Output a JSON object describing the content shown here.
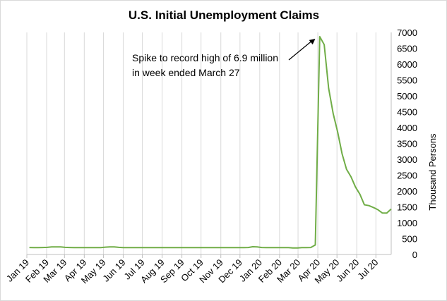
{
  "chart_data": {
    "type": "line",
    "title": "U.S. Initial Unemployment Claims",
    "xlabel": "",
    "ylabel": "Thousand Persons",
    "ylim": [
      0,
      7000
    ],
    "yticks": [
      0,
      500,
      1000,
      1500,
      2000,
      2500,
      3000,
      3500,
      4000,
      4500,
      5000,
      5500,
      6000,
      6500,
      7000
    ],
    "y_axis_side": "right",
    "grid": "vertical",
    "legend": "none",
    "x_tick_labels": [
      "Jan 19",
      "Feb 19",
      "Mar 19",
      "Apr 19",
      "May 19",
      "Jun 19",
      "Jul 19",
      "Aug 19",
      "Sep 19",
      "Oct 19",
      "Nov 19",
      "Dec 19",
      "Jan 20",
      "Feb 20",
      "Mar 20",
      "Apr 20",
      "May 20",
      "Jun 20",
      "Jul 20"
    ],
    "x": [
      "2019-01-05",
      "2019-01-12",
      "2019-01-19",
      "2019-01-26",
      "2019-02-02",
      "2019-02-09",
      "2019-02-16",
      "2019-02-23",
      "2019-03-02",
      "2019-03-09",
      "2019-03-16",
      "2019-03-23",
      "2019-03-30",
      "2019-04-06",
      "2019-04-13",
      "2019-04-20",
      "2019-04-27",
      "2019-05-04",
      "2019-05-11",
      "2019-05-18",
      "2019-05-25",
      "2019-06-01",
      "2019-06-08",
      "2019-06-15",
      "2019-06-22",
      "2019-06-29",
      "2019-07-06",
      "2019-07-13",
      "2019-07-20",
      "2019-07-27",
      "2019-08-03",
      "2019-08-10",
      "2019-08-17",
      "2019-08-24",
      "2019-08-31",
      "2019-09-07",
      "2019-09-14",
      "2019-09-21",
      "2019-09-28",
      "2019-10-05",
      "2019-10-12",
      "2019-10-19",
      "2019-10-26",
      "2019-11-02",
      "2019-11-09",
      "2019-11-16",
      "2019-11-23",
      "2019-11-30",
      "2019-12-07",
      "2019-12-14",
      "2019-12-21",
      "2019-12-28",
      "2020-01-04",
      "2020-01-11",
      "2020-01-18",
      "2020-01-25",
      "2020-02-01",
      "2020-02-08",
      "2020-02-15",
      "2020-02-22",
      "2020-02-29",
      "2020-03-07",
      "2020-03-14",
      "2020-03-21",
      "2020-03-28",
      "2020-04-04",
      "2020-04-11",
      "2020-04-18",
      "2020-04-25",
      "2020-05-02",
      "2020-05-09",
      "2020-05-16",
      "2020-05-23",
      "2020-05-30",
      "2020-06-06",
      "2020-06-13",
      "2020-06-20",
      "2020-06-27",
      "2020-07-04",
      "2020-07-11",
      "2020-07-18",
      "2020-07-25"
    ],
    "series": [
      {
        "name": "",
        "color": "#70ad47",
        "values": [
          220,
          215,
          215,
          220,
          225,
          240,
          240,
          240,
          225,
          220,
          215,
          215,
          215,
          215,
          215,
          215,
          215,
          230,
          240,
          240,
          225,
          215,
          215,
          215,
          215,
          215,
          215,
          215,
          215,
          215,
          215,
          215,
          215,
          215,
          215,
          215,
          215,
          215,
          215,
          215,
          215,
          215,
          215,
          215,
          215,
          215,
          215,
          215,
          215,
          220,
          245,
          240,
          220,
          215,
          215,
          215,
          215,
          215,
          215,
          205,
          205,
          215,
          215,
          220,
          300,
          6867,
          6615,
          5237,
          4442,
          3867,
          3176,
          2687,
          2446,
          2126,
          1897,
          1566,
          1540,
          1482,
          1413,
          1310,
          1307,
          1434
        ]
      }
    ],
    "annotation": {
      "lines": [
        "Spike to record high of 6.9 million",
        "in week ended March 27"
      ],
      "arrow_target": {
        "x": "2020-03-28",
        "y": 6867
      }
    }
  }
}
